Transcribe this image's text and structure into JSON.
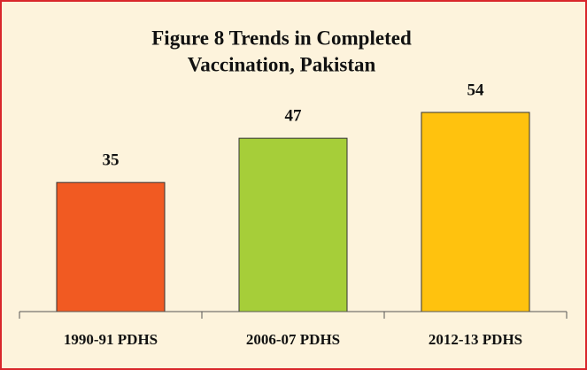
{
  "chart_data": {
    "type": "bar",
    "title": [
      "Figure 8 Trends in Completed",
      "Vaccination, Pakistan"
    ],
    "categories": [
      "1990-91 PDHS",
      "2006-07 PDHS",
      "2012-13 PDHS"
    ],
    "values": [
      35,
      47,
      54
    ],
    "colors": [
      "#f15a22",
      "#a6ce39",
      "#ffc20e"
    ],
    "ylim": [
      0,
      60
    ]
  }
}
